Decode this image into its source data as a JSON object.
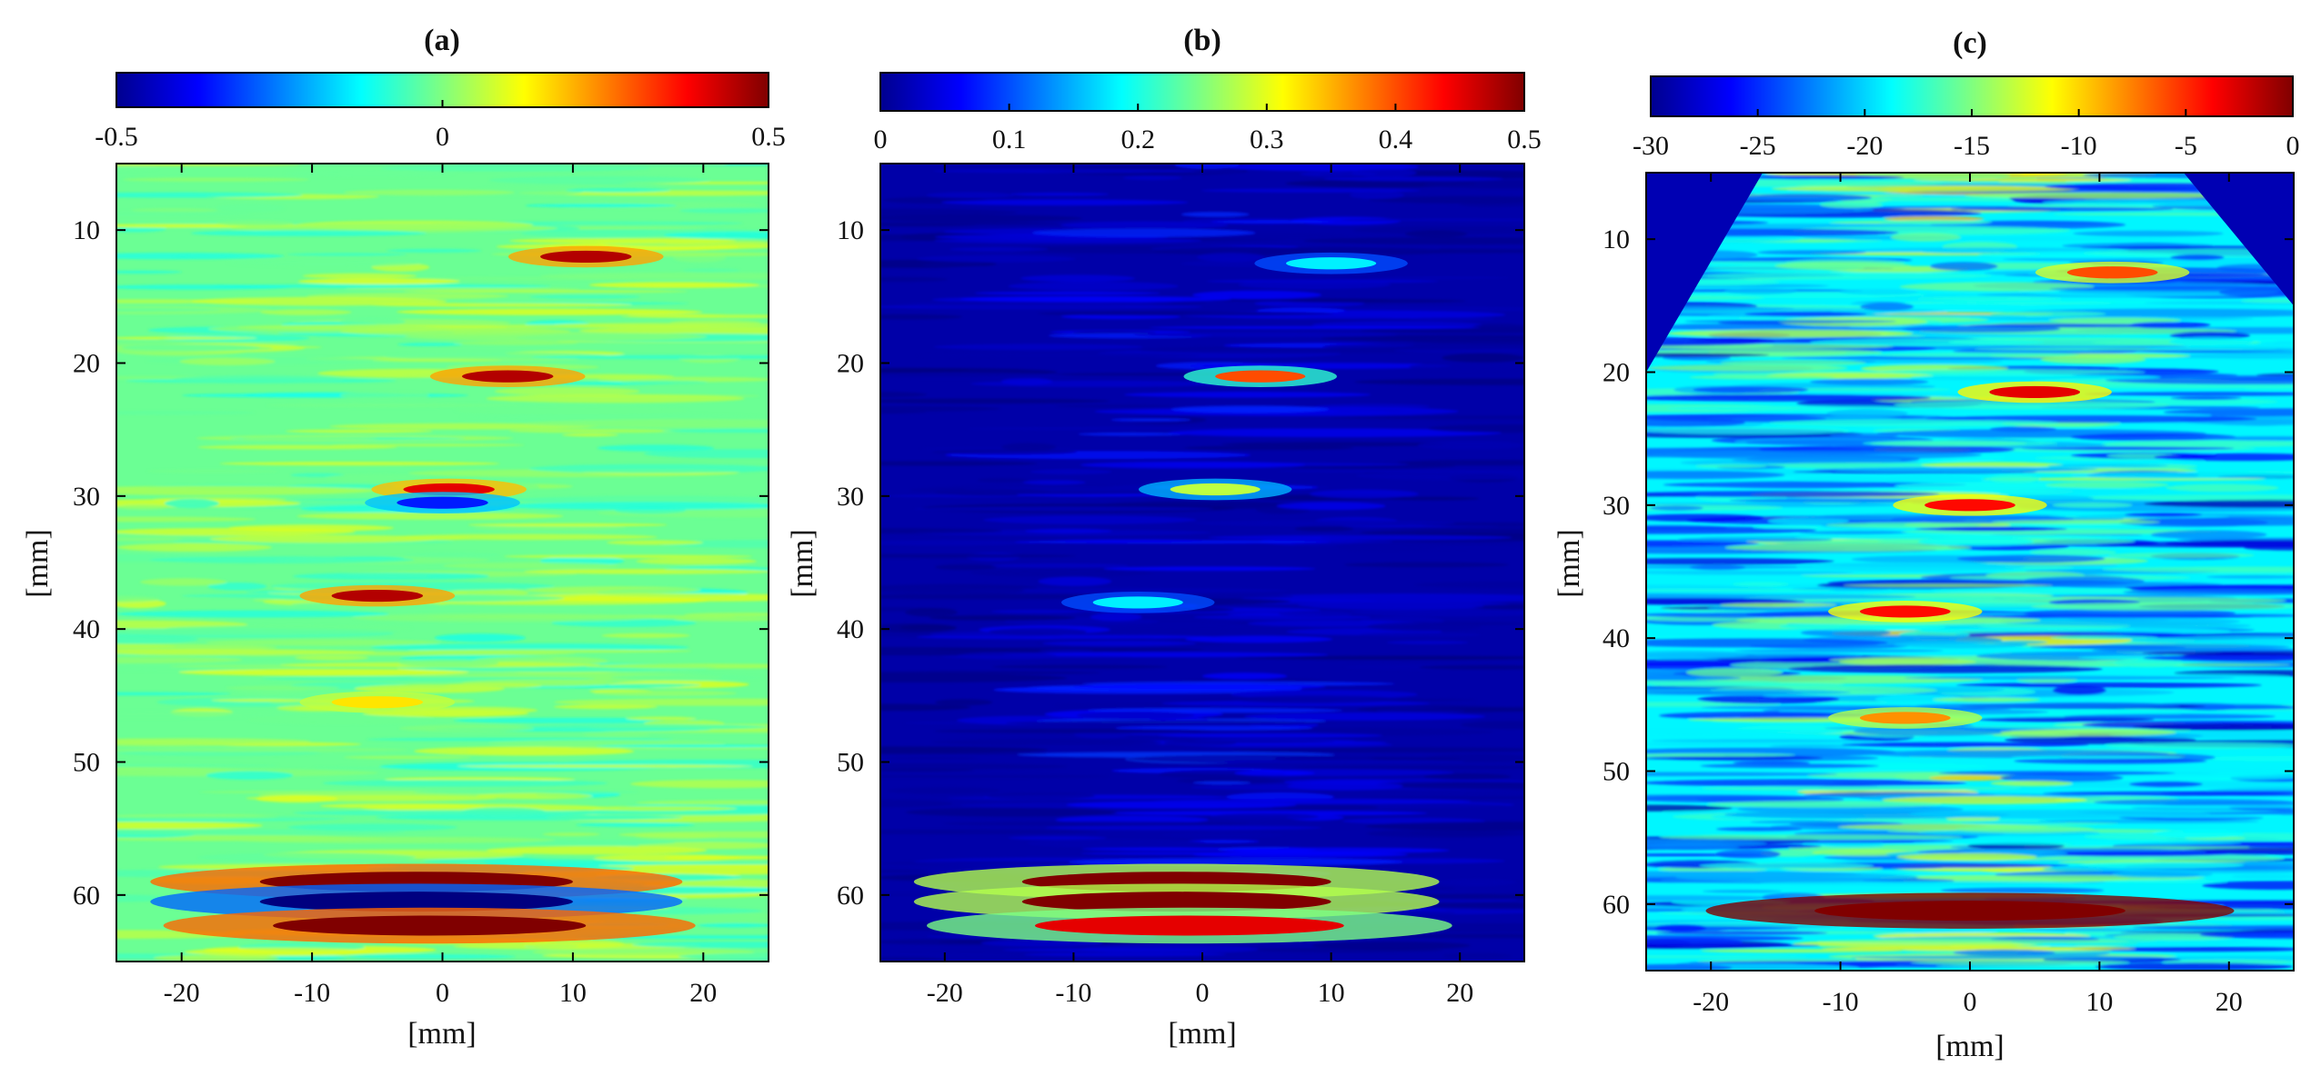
{
  "chart_data": [
    {
      "type": "heatmap",
      "title": "(a)",
      "xlabel": "[mm]",
      "ylabel": "[mm]",
      "xlim": [
        -25,
        25
      ],
      "ylim": [
        65,
        5
      ],
      "x_ticks": [
        "-20",
        "-10",
        "0",
        "10",
        "20"
      ],
      "x_tick_values": [
        -20,
        -10,
        0,
        10,
        20
      ],
      "y_ticks": [
        "10",
        "20",
        "30",
        "40",
        "50",
        "60"
      ],
      "y_tick_values": [
        10,
        20,
        30,
        40,
        50,
        60
      ],
      "colorbar": {
        "range": [
          -0.5,
          0.5
        ],
        "ticks": [
          "-0.5",
          "0",
          "0.5"
        ],
        "tick_values": [
          -0.5,
          0,
          0.5
        ],
        "colormap": "jet"
      },
      "background_value": -0.02,
      "sector_mask": false,
      "features": [
        {
          "x": 11,
          "z": 12,
          "value": 0.45
        },
        {
          "x": 5,
          "z": 21,
          "value": 0.45
        },
        {
          "x": 0.5,
          "z": 29.5,
          "value": 0.4
        },
        {
          "x": 0,
          "z": 30.5,
          "value": -0.35
        },
        {
          "x": -5,
          "z": 37.5,
          "value": 0.45
        },
        {
          "x": -5,
          "z": 45.5,
          "value": 0.15
        },
        {
          "x": -2,
          "z": 59,
          "value": 0.5
        },
        {
          "x": -2,
          "z": 60.5,
          "value": -0.5
        },
        {
          "x": -1,
          "z": 62.3,
          "value": 0.5
        }
      ]
    },
    {
      "type": "heatmap",
      "title": "(b)",
      "xlabel": "[mm]",
      "ylabel": "[mm]",
      "xlim": [
        -25,
        25
      ],
      "ylim": [
        65,
        5
      ],
      "x_ticks": [
        "-20",
        "-10",
        "0",
        "10",
        "20"
      ],
      "x_tick_values": [
        -20,
        -10,
        0,
        10,
        20
      ],
      "y_ticks": [
        "10",
        "20",
        "30",
        "40",
        "50",
        "60"
      ],
      "y_tick_values": [
        10,
        20,
        30,
        40,
        50,
        60
      ],
      "colorbar": {
        "range": [
          0,
          0.5
        ],
        "ticks": [
          "0",
          "0.1",
          "0.2",
          "0.3",
          "0.4",
          "0.5"
        ],
        "tick_values": [
          0,
          0.1,
          0.2,
          0.3,
          0.4,
          0.5
        ],
        "colormap": "jet"
      },
      "background_value": 0.02,
      "sector_mask": false,
      "features": [
        {
          "x": 10,
          "z": 12.5,
          "value": 0.18
        },
        {
          "x": 4.5,
          "z": 21,
          "value": 0.4
        },
        {
          "x": 1,
          "z": 29.5,
          "value": 0.28
        },
        {
          "x": -5,
          "z": 38,
          "value": 0.18
        },
        {
          "x": -2,
          "z": 59,
          "value": 0.5
        },
        {
          "x": -2,
          "z": 60.5,
          "value": 0.5
        },
        {
          "x": -1,
          "z": 62.3,
          "value": 0.45
        }
      ]
    },
    {
      "type": "heatmap",
      "title": "(c)",
      "xlabel": "[mm]",
      "ylabel": "[mm]",
      "xlim": [
        -25,
        25
      ],
      "ylim": [
        65,
        5
      ],
      "x_ticks": [
        "-20",
        "-10",
        "0",
        "10",
        "20"
      ],
      "x_tick_values": [
        -20,
        -10,
        0,
        10,
        20
      ],
      "y_ticks": [
        "10",
        "20",
        "30",
        "40",
        "50",
        "60"
      ],
      "y_tick_values": [
        10,
        20,
        30,
        40,
        50,
        60
      ],
      "colorbar": {
        "range": [
          -30,
          0
        ],
        "ticks": [
          "-30",
          "-25",
          "-20",
          "-15",
          "-10",
          "-5",
          "0"
        ],
        "tick_values": [
          -30,
          -25,
          -20,
          -15,
          -10,
          -5,
          0
        ],
        "colormap": "jet"
      },
      "background_value": -19,
      "sector_mask": true,
      "features": [
        {
          "x": 11,
          "z": 12.5,
          "value": -6
        },
        {
          "x": 5,
          "z": 21.5,
          "value": -3
        },
        {
          "x": 0,
          "z": 30,
          "value": -4
        },
        {
          "x": -5,
          "z": 38,
          "value": -4
        },
        {
          "x": -5,
          "z": 46,
          "value": -8
        },
        {
          "x": 0,
          "z": 60.5,
          "value": 0
        }
      ]
    }
  ]
}
